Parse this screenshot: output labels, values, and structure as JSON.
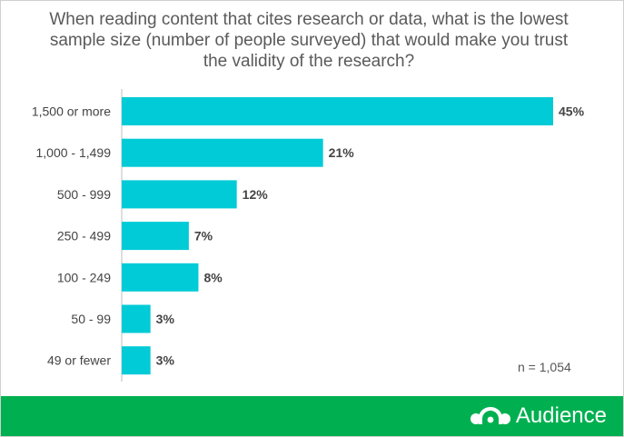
{
  "chart_data": {
    "type": "bar",
    "orientation": "horizontal",
    "title": "When reading content that cites research or data, what is the lowest sample size (number of people surveyed) that would make you trust the validity of the research?",
    "categories": [
      "1,500 or more",
      "1,000 - 1,499",
      "500 - 999",
      "250 - 499",
      "100 - 249",
      "50 - 99",
      "49 or fewer"
    ],
    "values": [
      45,
      21,
      12,
      7,
      8,
      3,
      3
    ],
    "value_labels": [
      "45%",
      "21%",
      "12%",
      "7%",
      "8%",
      "3%",
      "3%"
    ],
    "xlim": [
      0,
      45
    ],
    "grid": false,
    "bar_color": "#00cbd6"
  },
  "annotation": "n = 1,054",
  "footer": {
    "brand": "Audience",
    "icon": "surveymonkey-logo-icon",
    "color": "#00b050"
  }
}
